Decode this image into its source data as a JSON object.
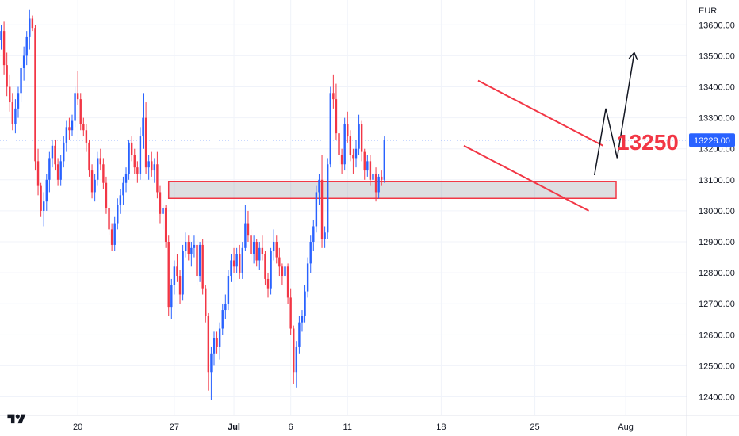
{
  "chart_data": {
    "type": "candlestick",
    "currency": "EUR",
    "colors": {
      "up": "#2962ff",
      "down": "#f23645",
      "annotation": "#f23645",
      "projection": "#131722",
      "price_line": "#2962ff"
    },
    "y_ticks": [
      12400,
      12500,
      12600,
      12700,
      12800,
      12900,
      13000,
      13100,
      13200,
      13300,
      13400,
      13500,
      13600
    ],
    "y_tick_labels": [
      "12400.00",
      "12500.00",
      "12600.00",
      "12700.00",
      "12800.00",
      "12900.00",
      "13000.00",
      "13100.00",
      "13200.00",
      "13300.00",
      "13400.00",
      "13500.00",
      "13600.00"
    ],
    "ylim": [
      12340,
      13680
    ],
    "x_labels": [
      {
        "label": "20",
        "bold": false,
        "bar": 27
      },
      {
        "label": "27",
        "bold": false,
        "bar": 61
      },
      {
        "label": "Jul",
        "bold": true,
        "bar": 82
      },
      {
        "label": "6",
        "bold": false,
        "bar": 102
      },
      {
        "label": "11",
        "bold": false,
        "bar": 122
      },
      {
        "label": "18",
        "bold": false,
        "bar": 155
      },
      {
        "label": "25",
        "bold": false,
        "bar": 188
      },
      {
        "label": "Aug",
        "bold": false,
        "bar": 220
      }
    ],
    "last_price": 13228,
    "last_price_label": "13228.00",
    "target_label": "13250",
    "support_zone": [
      13040,
      13095
    ],
    "channel_upper": [
      [
        168,
        13420
      ],
      [
        212,
        13210
      ]
    ],
    "channel_lower": [
      [
        163,
        13210
      ],
      [
        207,
        13000
      ]
    ],
    "projection": [
      [
        209,
        13115
      ],
      [
        213,
        13330
      ],
      [
        217,
        13170
      ],
      [
        223,
        13510
      ]
    ],
    "candles": [
      [
        13550,
        13600,
        13520,
        13580
      ],
      [
        13580,
        13610,
        13440,
        13470
      ],
      [
        13470,
        13510,
        13370,
        13400
      ],
      [
        13400,
        13440,
        13320,
        13350
      ],
      [
        13350,
        13380,
        13260,
        13280
      ],
      [
        13280,
        13360,
        13250,
        13330
      ],
      [
        13330,
        13400,
        13300,
        13380
      ],
      [
        13380,
        13470,
        13350,
        13460
      ],
      [
        13460,
        13530,
        13420,
        13500
      ],
      [
        13500,
        13580,
        13470,
        13560
      ],
      [
        13560,
        13650,
        13520,
        13620
      ],
      [
        13620,
        13630,
        13580,
        13590
      ],
      [
        13590,
        13600,
        13130,
        13160
      ],
      [
        13160,
        13200,
        13050,
        13080
      ],
      [
        13080,
        13090,
        12980,
        13000
      ],
      [
        13000,
        13060,
        12950,
        13030
      ],
      [
        13030,
        13120,
        13000,
        13100
      ],
      [
        13100,
        13190,
        13060,
        13170
      ],
      [
        13170,
        13230,
        13140,
        13210
      ],
      [
        13210,
        13230,
        13130,
        13150
      ],
      [
        13150,
        13170,
        13080,
        13100
      ],
      [
        13100,
        13180,
        13080,
        13160
      ],
      [
        13160,
        13240,
        13140,
        13220
      ],
      [
        13220,
        13290,
        13190,
        13270
      ],
      [
        13270,
        13300,
        13230,
        13260
      ],
      [
        13260,
        13310,
        13240,
        13290
      ],
      [
        13290,
        13400,
        13270,
        13380
      ],
      [
        13380,
        13450,
        13340,
        13360
      ],
      [
        13360,
        13380,
        13260,
        13280
      ],
      [
        13280,
        13300,
        13240,
        13260
      ],
      [
        13260,
        13280,
        13190,
        13220
      ],
      [
        13220,
        13230,
        13110,
        13130
      ],
      [
        13130,
        13150,
        13040,
        13060
      ],
      [
        13060,
        13120,
        13030,
        13100
      ],
      [
        13100,
        13190,
        13080,
        13170
      ],
      [
        13170,
        13200,
        13130,
        13150
      ],
      [
        13150,
        13170,
        13070,
        13090
      ],
      [
        13090,
        13110,
        12990,
        13010
      ],
      [
        13010,
        13020,
        12920,
        12940
      ],
      [
        12940,
        12960,
        12870,
        12890
      ],
      [
        12890,
        12980,
        12870,
        12960
      ],
      [
        12960,
        13040,
        12940,
        13020
      ],
      [
        13020,
        13070,
        12990,
        13050
      ],
      [
        13050,
        13110,
        13020,
        13090
      ],
      [
        13090,
        13140,
        13060,
        13120
      ],
      [
        13120,
        13230,
        13100,
        13220
      ],
      [
        13220,
        13240,
        13160,
        13180
      ],
      [
        13180,
        13200,
        13120,
        13140
      ],
      [
        13140,
        13160,
        13090,
        13120
      ],
      [
        13120,
        13270,
        13100,
        13240
      ],
      [
        13240,
        13380,
        13200,
        13300
      ],
      [
        13300,
        13350,
        13120,
        13140
      ],
      [
        13140,
        13180,
        13100,
        13160
      ],
      [
        13160,
        13190,
        13110,
        13130
      ],
      [
        13130,
        13170,
        13090,
        13150
      ],
      [
        13150,
        13190,
        13040,
        13060
      ],
      [
        13060,
        13080,
        12960,
        12990
      ],
      [
        12990,
        13020,
        12940,
        13010
      ],
      [
        13010,
        13020,
        12880,
        12900
      ],
      [
        12900,
        12920,
        12660,
        12690
      ],
      [
        12690,
        12780,
        12650,
        12760
      ],
      [
        12760,
        12840,
        12730,
        12820
      ],
      [
        12820,
        12860,
        12770,
        12790
      ],
      [
        12790,
        12810,
        12700,
        12730
      ],
      [
        12730,
        12890,
        12710,
        12870
      ],
      [
        12870,
        12930,
        12850,
        12900
      ],
      [
        12900,
        12920,
        12840,
        12860
      ],
      [
        12860,
        12900,
        12820,
        12880
      ],
      [
        12880,
        12920,
        12850,
        12890
      ],
      [
        12890,
        12910,
        12760,
        12790
      ],
      [
        12790,
        12900,
        12770,
        12890
      ],
      [
        12890,
        12910,
        12730,
        12750
      ],
      [
        12750,
        12760,
        12640,
        12660
      ],
      [
        12660,
        12670,
        12420,
        12480
      ],
      [
        12480,
        12560,
        12390,
        12540
      ],
      [
        12540,
        12610,
        12500,
        12590
      ],
      [
        12590,
        12610,
        12540,
        12560
      ],
      [
        12560,
        12640,
        12520,
        12620
      ],
      [
        12620,
        12700,
        12600,
        12680
      ],
      [
        12680,
        12730,
        12650,
        12700
      ],
      [
        12700,
        12810,
        12680,
        12790
      ],
      [
        12790,
        12860,
        12770,
        12840
      ],
      [
        12840,
        12880,
        12800,
        12820
      ],
      [
        12820,
        12880,
        12800,
        12860
      ],
      [
        12860,
        12890,
        12780,
        12800
      ],
      [
        12800,
        12900,
        12780,
        12880
      ],
      [
        12880,
        13020,
        12870,
        12960
      ],
      [
        12960,
        13000,
        12900,
        12920
      ],
      [
        12920,
        12940,
        12840,
        12860
      ],
      [
        12860,
        12920,
        12830,
        12900
      ],
      [
        12900,
        12910,
        12820,
        12840
      ],
      [
        12840,
        12900,
        12810,
        12880
      ],
      [
        12880,
        12920,
        12840,
        12860
      ],
      [
        12860,
        12870,
        12760,
        12780
      ],
      [
        12780,
        12800,
        12720,
        12750
      ],
      [
        12750,
        12880,
        12730,
        12870
      ],
      [
        12870,
        12940,
        12840,
        12900
      ],
      [
        12900,
        12920,
        12830,
        12850
      ],
      [
        12850,
        12880,
        12790,
        12820
      ],
      [
        12820,
        12830,
        12760,
        12790
      ],
      [
        12790,
        12840,
        12760,
        12820
      ],
      [
        12820,
        12830,
        12700,
        12720
      ],
      [
        12720,
        12750,
        12600,
        12620
      ],
      [
        12620,
        12630,
        12440,
        12480
      ],
      [
        12480,
        12580,
        12430,
        12560
      ],
      [
        12560,
        12660,
        12540,
        12640
      ],
      [
        12640,
        12680,
        12610,
        12660
      ],
      [
        12660,
        12760,
        12640,
        12740
      ],
      [
        12740,
        12850,
        12720,
        12830
      ],
      [
        12830,
        12920,
        12800,
        12900
      ],
      [
        12900,
        12970,
        12870,
        12950
      ],
      [
        12950,
        13080,
        12930,
        13060
      ],
      [
        13060,
        13120,
        13020,
        13100
      ],
      [
        13100,
        13180,
        12880,
        12910
      ],
      [
        12910,
        12950,
        12880,
        12930
      ],
      [
        12930,
        13170,
        12910,
        13150
      ],
      [
        13150,
        13400,
        13140,
        13380
      ],
      [
        13380,
        13440,
        13330,
        13360
      ],
      [
        13360,
        13410,
        13230,
        13250
      ],
      [
        13250,
        13280,
        13150,
        13180
      ],
      [
        13180,
        13200,
        13120,
        13150
      ],
      [
        13150,
        13300,
        13130,
        13280
      ],
      [
        13280,
        13320,
        13220,
        13240
      ],
      [
        13240,
        13260,
        13160,
        13180
      ],
      [
        13180,
        13200,
        13120,
        13170
      ],
      [
        13170,
        13230,
        13140,
        13200
      ],
      [
        13200,
        13310,
        13180,
        13280
      ],
      [
        13280,
        13290,
        13160,
        13190
      ],
      [
        13190,
        13200,
        13100,
        13130
      ],
      [
        13130,
        13180,
        13110,
        13160
      ],
      [
        13160,
        13180,
        13080,
        13100
      ],
      [
        13100,
        13150,
        13060,
        13120
      ],
      [
        13120,
        13140,
        13030,
        13060
      ],
      [
        13060,
        13120,
        13040,
        13110
      ],
      [
        13110,
        13130,
        13080,
        13100
      ],
      [
        13100,
        13240,
        13090,
        13228
      ]
    ]
  }
}
